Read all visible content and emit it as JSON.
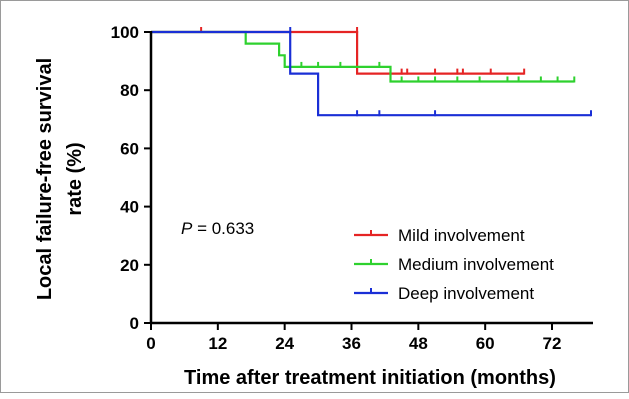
{
  "chart_data": {
    "type": "line",
    "subtype": "kaplan-meier",
    "xlabel": "Time after treatment initiation (months)",
    "ylabel_line1": "Local failure-free survival",
    "ylabel_line2": "rate (%)",
    "xlim": [
      0,
      79
    ],
    "ylim": [
      0,
      100
    ],
    "xticks": [
      0,
      12,
      24,
      36,
      48,
      60,
      72
    ],
    "yticks": [
      0,
      20,
      40,
      60,
      80,
      100
    ],
    "grid": false,
    "legend_position": "lower-right",
    "annotation": {
      "p_label": "P",
      "p_text": " = 0.633"
    },
    "series": [
      {
        "name": "Mild involvement",
        "color": "#e52424",
        "steps": [
          [
            0,
            100
          ],
          [
            37,
            100
          ],
          [
            37,
            85.7
          ],
          [
            67,
            85.7
          ]
        ],
        "censored": [
          [
            9,
            100
          ],
          [
            37,
            100
          ],
          [
            45,
            85.7
          ],
          [
            46,
            85.7
          ],
          [
            51,
            85.7
          ],
          [
            55,
            85.7
          ],
          [
            56,
            85.7
          ],
          [
            61,
            85.7
          ],
          [
            67,
            85.7
          ]
        ]
      },
      {
        "name": "Medium involvement",
        "color": "#2ed12e",
        "steps": [
          [
            0,
            100
          ],
          [
            17,
            100
          ],
          [
            17,
            96
          ],
          [
            23,
            96
          ],
          [
            23,
            92
          ],
          [
            24,
            92
          ],
          [
            24,
            88
          ],
          [
            43,
            88
          ],
          [
            43,
            83
          ],
          [
            76,
            83
          ]
        ],
        "censored": [
          [
            27,
            88
          ],
          [
            30,
            88
          ],
          [
            34,
            88
          ],
          [
            41,
            88
          ],
          [
            45,
            83
          ],
          [
            48,
            83
          ],
          [
            51,
            83
          ],
          [
            55,
            83
          ],
          [
            59,
            83
          ],
          [
            64,
            83
          ],
          [
            66,
            83
          ],
          [
            70,
            83
          ],
          [
            73,
            83
          ],
          [
            76,
            83
          ]
        ]
      },
      {
        "name": "Deep involvement",
        "color": "#1a2fd6",
        "steps": [
          [
            0,
            100
          ],
          [
            25,
            100
          ],
          [
            25,
            85.7
          ],
          [
            30,
            85.7
          ],
          [
            30,
            71.4
          ],
          [
            79,
            71.4
          ]
        ],
        "censored": [
          [
            25,
            100
          ],
          [
            37,
            71.4
          ],
          [
            41,
            71.4
          ],
          [
            51,
            71.4
          ],
          [
            79,
            71.4
          ]
        ]
      }
    ]
  }
}
